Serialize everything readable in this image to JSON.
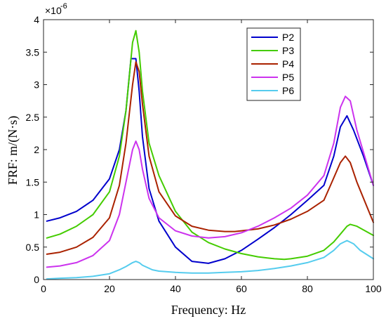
{
  "chart_data": {
    "type": "line",
    "xlabel": "Frequency: Hz",
    "ylabel": "FRF: m/(N·s)",
    "y_exponent_label": "×10",
    "y_exponent": "-6",
    "xlim": [
      0,
      100
    ],
    "ylim": [
      0,
      4
    ],
    "xticks": [
      "0",
      "20",
      "40",
      "60",
      "80",
      "100"
    ],
    "yticks": [
      "0",
      "0.5",
      "1",
      "1.5",
      "2",
      "2.5",
      "3",
      "3.5",
      "4"
    ],
    "y_scale_note": "values in units of 1e-6",
    "grid": false,
    "legend_position": "top-right",
    "series": [
      {
        "name": "P2",
        "color": "#0000cc",
        "x": [
          1,
          5,
          10,
          15,
          20,
          23,
          25,
          26.5,
          28,
          29,
          30,
          32,
          35,
          40,
          45,
          50,
          55,
          60,
          65,
          70,
          75,
          80,
          85,
          88,
          90,
          92,
          94,
          97,
          100
        ],
        "y": [
          0.9,
          0.95,
          1.05,
          1.22,
          1.55,
          2.0,
          2.6,
          3.4,
          3.4,
          2.9,
          2.2,
          1.4,
          0.9,
          0.5,
          0.28,
          0.25,
          0.32,
          0.45,
          0.62,
          0.8,
          1.0,
          1.22,
          1.45,
          1.9,
          2.35,
          2.52,
          2.3,
          1.9,
          1.45
        ]
      },
      {
        "name": "P3",
        "color": "#44cc00",
        "x": [
          1,
          5,
          10,
          15,
          20,
          23,
          25,
          27,
          28,
          29,
          30,
          32,
          35,
          40,
          45,
          50,
          55,
          60,
          65,
          70,
          73,
          75,
          80,
          85,
          88,
          90,
          92,
          93,
          95,
          100
        ],
        "y": [
          0.64,
          0.7,
          0.82,
          1.0,
          1.35,
          1.9,
          2.6,
          3.65,
          3.83,
          3.5,
          2.9,
          2.1,
          1.6,
          1.05,
          0.73,
          0.57,
          0.47,
          0.4,
          0.35,
          0.32,
          0.31,
          0.32,
          0.36,
          0.45,
          0.58,
          0.7,
          0.82,
          0.85,
          0.82,
          0.68
        ]
      },
      {
        "name": "P4",
        "color": "#aa2200",
        "x": [
          1,
          5,
          10,
          15,
          20,
          23,
          25,
          27,
          28,
          29,
          30,
          32,
          35,
          40,
          45,
          50,
          55,
          58,
          60,
          65,
          70,
          75,
          80,
          85,
          87,
          90,
          91.5,
          93,
          95,
          100
        ],
        "y": [
          0.39,
          0.42,
          0.5,
          0.65,
          0.95,
          1.45,
          2.1,
          3.0,
          3.35,
          3.2,
          2.7,
          1.9,
          1.35,
          0.98,
          0.82,
          0.76,
          0.74,
          0.74,
          0.75,
          0.78,
          0.84,
          0.93,
          1.05,
          1.22,
          1.45,
          1.8,
          1.9,
          1.8,
          1.5,
          0.88
        ]
      },
      {
        "name": "P5",
        "color": "#cc33ee",
        "x": [
          1,
          5,
          10,
          15,
          20,
          23,
          25,
          27,
          28,
          29,
          30,
          32,
          35,
          40,
          45,
          50,
          55,
          60,
          65,
          70,
          75,
          80,
          85,
          88,
          90,
          91.5,
          93,
          95,
          100
        ],
        "y": [
          0.19,
          0.21,
          0.26,
          0.37,
          0.6,
          1.0,
          1.5,
          2.0,
          2.13,
          2.0,
          1.7,
          1.25,
          0.95,
          0.75,
          0.67,
          0.64,
          0.66,
          0.72,
          0.82,
          0.95,
          1.1,
          1.3,
          1.6,
          2.1,
          2.65,
          2.82,
          2.75,
          2.3,
          1.45
        ]
      },
      {
        "name": "P6",
        "color": "#55ccee",
        "x": [
          1,
          5,
          10,
          15,
          20,
          23,
          25,
          27,
          28,
          29,
          30,
          33,
          35,
          40,
          45,
          50,
          55,
          60,
          65,
          70,
          75,
          80,
          85,
          88,
          90,
          92,
          94,
          96,
          100
        ],
        "y": [
          0.01,
          0.02,
          0.03,
          0.05,
          0.09,
          0.15,
          0.2,
          0.26,
          0.28,
          0.26,
          0.22,
          0.15,
          0.13,
          0.11,
          0.1,
          0.1,
          0.11,
          0.12,
          0.14,
          0.17,
          0.21,
          0.26,
          0.34,
          0.45,
          0.55,
          0.6,
          0.55,
          0.45,
          0.32
        ]
      }
    ]
  }
}
